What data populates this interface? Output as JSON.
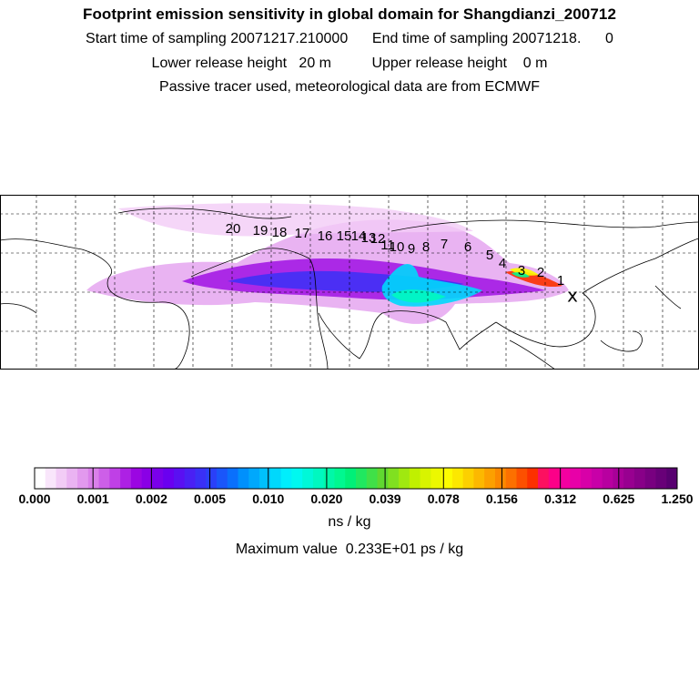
{
  "header": {
    "title": "Footprint emission sensitivity in global domain for Shangdianzi_200712",
    "sampling": "Start time of sampling 20071217.210000      End time of sampling 20071218.      0",
    "release_height": "Lower release height   20 m          Upper release height    0 m",
    "tracer": "Passive tracer used, meteorological data are from ECMWF"
  },
  "map": {
    "receptor_marker": "x",
    "trajectory_labels": [
      "1",
      "2",
      "3",
      "4",
      "5",
      "6",
      "7",
      "8",
      "9",
      "10",
      "11",
      "12",
      "13",
      "14",
      "15",
      "16",
      "17",
      "18",
      "19",
      "20"
    ]
  },
  "colorbar": {
    "tick_labels": [
      "0.000",
      "0.001",
      "0.002",
      "0.005",
      "0.010",
      "0.020",
      "0.039",
      "0.078",
      "0.156",
      "0.312",
      "0.625",
      "1.250"
    ],
    "colors": [
      "#ffffff",
      "#f9e6fb",
      "#f2ccf6",
      "#eab3f2",
      "#e299ee",
      "#da80ea",
      "#cd5fe8",
      "#bf40e6",
      "#ad21e4",
      "#9b06e2",
      "#8a00e6",
      "#7a00ea",
      "#6a00f0",
      "#5a10f2",
      "#4a20f4",
      "#3a30f6",
      "#2a40f8",
      "#1a56fa",
      "#0a70fc",
      "#0090fc",
      "#00a8fc",
      "#00c0fc",
      "#00d8fc",
      "#00eefc",
      "#00f8f0",
      "#00f8d8",
      "#00f8c0",
      "#00f8a8",
      "#00f890",
      "#00f078",
      "#20e860",
      "#40e048",
      "#60d830",
      "#80e020",
      "#a0e810",
      "#c0f000",
      "#d8f400",
      "#ecf800",
      "#fcfc00",
      "#fce800",
      "#fcd000",
      "#fcb800",
      "#fca000",
      "#fc8800",
      "#fc7000",
      "#fc5000",
      "#fc3000",
      "#fc1060",
      "#fc0088",
      "#f400a0",
      "#e800a8",
      "#d800a8",
      "#c800a8",
      "#b800a0",
      "#a80098",
      "#980090",
      "#880088",
      "#780080",
      "#680078",
      "#580070"
    ],
    "units": "ns / kg",
    "max_value": "Maximum value  0.233E+01 ps / kg"
  }
}
